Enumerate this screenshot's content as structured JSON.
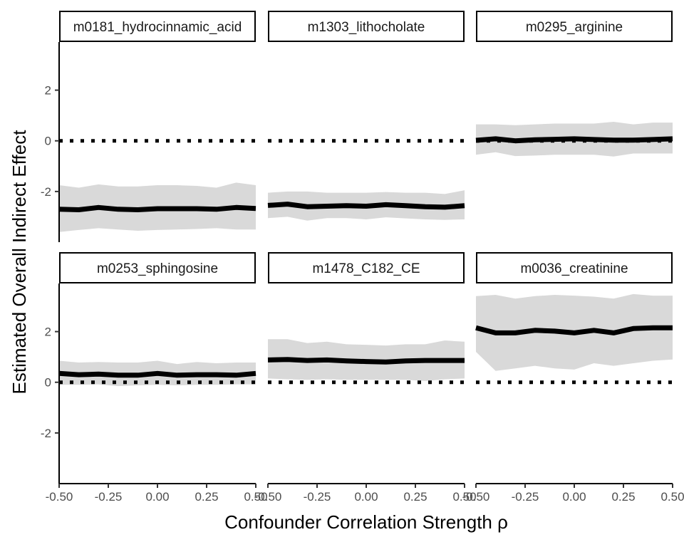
{
  "chart_data": {
    "type": "line",
    "xlabel": "Confounder Correlation Strength ρ",
    "ylabel": "Estimated Overall Indirect Effect",
    "x_ticks": [
      -0.5,
      -0.25,
      0.0,
      0.25,
      0.5
    ],
    "x_tick_labels": [
      "-0.50",
      "-0.25",
      "0.00",
      "0.25",
      "0.50"
    ],
    "y_ticks": [
      -2,
      0,
      2
    ],
    "y_tick_labels": [
      "-2",
      "0",
      "2"
    ],
    "xlim": [
      -0.5,
      0.5
    ],
    "ylim": [
      -4.0,
      3.9
    ],
    "reference_line": 0,
    "x": [
      -0.5,
      -0.4,
      -0.3,
      -0.2,
      -0.1,
      0.0,
      0.1,
      0.2,
      0.3,
      0.4,
      0.5
    ],
    "panels": [
      {
        "label": "m0181_hydrocinnamic_acid",
        "estimate": [
          -2.7,
          -2.72,
          -2.63,
          -2.7,
          -2.72,
          -2.68,
          -2.68,
          -2.68,
          -2.7,
          -2.63,
          -2.67
        ],
        "lower": [
          -3.6,
          -3.52,
          -3.45,
          -3.5,
          -3.55,
          -3.52,
          -3.5,
          -3.48,
          -3.45,
          -3.5,
          -3.5
        ],
        "upper": [
          -1.75,
          -1.85,
          -1.72,
          -1.8,
          -1.8,
          -1.75,
          -1.75,
          -1.78,
          -1.85,
          -1.65,
          -1.75
        ]
      },
      {
        "label": "m1303_lithocholate",
        "estimate": [
          -2.55,
          -2.5,
          -2.6,
          -2.58,
          -2.56,
          -2.58,
          -2.52,
          -2.56,
          -2.6,
          -2.62,
          -2.56
        ],
        "lower": [
          -3.05,
          -3.0,
          -3.15,
          -3.05,
          -3.05,
          -3.1,
          -3.02,
          -3.06,
          -3.1,
          -3.12,
          -3.1
        ],
        "upper": [
          -2.05,
          -2.0,
          -2.0,
          -2.05,
          -2.05,
          -2.05,
          -2.02,
          -2.05,
          -2.05,
          -2.1,
          -1.95
        ]
      },
      {
        "label": "m0295_arginine",
        "estimate": [
          0.02,
          0.08,
          0.0,
          0.04,
          0.06,
          0.08,
          0.05,
          0.03,
          0.03,
          0.05,
          0.08
        ],
        "lower": [
          -0.55,
          -0.45,
          -0.6,
          -0.58,
          -0.55,
          -0.55,
          -0.55,
          -0.62,
          -0.5,
          -0.5,
          -0.5
        ],
        "upper": [
          0.65,
          0.65,
          0.62,
          0.65,
          0.68,
          0.68,
          0.68,
          0.75,
          0.65,
          0.72,
          0.72
        ]
      },
      {
        "label": "m0253_sphingosine",
        "estimate": [
          0.35,
          0.3,
          0.32,
          0.28,
          0.28,
          0.35,
          0.28,
          0.3,
          0.3,
          0.28,
          0.35
        ],
        "lower": [
          -0.1,
          -0.1,
          -0.08,
          -0.15,
          -0.12,
          -0.1,
          -0.12,
          -0.1,
          -0.1,
          -0.08,
          -0.08
        ],
        "upper": [
          0.85,
          0.78,
          0.8,
          0.78,
          0.78,
          0.85,
          0.72,
          0.8,
          0.75,
          0.78,
          0.78
        ]
      },
      {
        "label": "m1478_C182_CE",
        "estimate": [
          0.88,
          0.9,
          0.86,
          0.88,
          0.84,
          0.82,
          0.8,
          0.84,
          0.86,
          0.86,
          0.86
        ],
        "lower": [
          0.15,
          0.12,
          0.1,
          0.12,
          0.1,
          0.1,
          0.1,
          0.1,
          0.05,
          0.12,
          0.15
        ],
        "upper": [
          1.7,
          1.7,
          1.55,
          1.6,
          1.5,
          1.48,
          1.45,
          1.5,
          1.5,
          1.65,
          1.6
        ]
      },
      {
        "label": "m0036_creatinine",
        "estimate": [
          2.15,
          1.95,
          1.95,
          2.05,
          2.02,
          1.95,
          2.05,
          1.95,
          2.12,
          2.15,
          2.15
        ],
        "lower": [
          1.2,
          0.45,
          0.55,
          0.65,
          0.55,
          0.5,
          0.75,
          0.65,
          0.75,
          0.85,
          0.9
        ],
        "upper": [
          3.4,
          3.45,
          3.3,
          3.4,
          3.45,
          3.42,
          3.38,
          3.3,
          3.48,
          3.42,
          3.42
        ]
      }
    ]
  }
}
